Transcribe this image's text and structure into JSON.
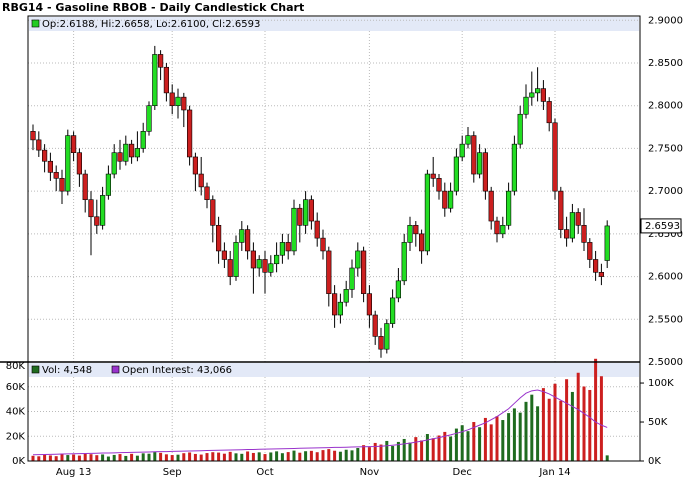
{
  "title": "RBG14 - Gasoline RBOB - Daily Candlestick Chart",
  "chart_data": [
    {
      "type": "candlestick",
      "legend": "Op:2.6188, Hi:2.6658, Lo:2.6100, Cl:2.6593",
      "legend_color": "#22cc22",
      "up_color": "#22dd22",
      "down_color": "#cc1f1f",
      "grid": true,
      "ylim": [
        2.5,
        2.905
      ],
      "yticks": [
        {
          "value": 2.5,
          "label": "2.5000"
        },
        {
          "value": 2.55,
          "label": "2.5500"
        },
        {
          "value": 2.6,
          "label": "2.6000"
        },
        {
          "value": 2.65,
          "label": "2.6500"
        },
        {
          "value": 2.7,
          "label": "2.7000"
        },
        {
          "value": 2.75,
          "label": "2.7500"
        },
        {
          "value": 2.8,
          "label": "2.8000"
        },
        {
          "value": 2.85,
          "label": "2.8500"
        },
        {
          "value": 2.9,
          "label": "2.9000"
        }
      ],
      "categories": [
        null,
        null,
        null,
        null,
        null,
        null,
        null,
        "Aug 13",
        null,
        null,
        null,
        null,
        null,
        null,
        null,
        null,
        null,
        null,
        null,
        null,
        null,
        null,
        null,
        null,
        "Sep",
        null,
        null,
        null,
        null,
        null,
        null,
        null,
        null,
        null,
        null,
        null,
        null,
        null,
        null,
        null,
        "Oct",
        null,
        null,
        null,
        null,
        null,
        null,
        null,
        null,
        null,
        null,
        null,
        null,
        null,
        null,
        null,
        null,
        null,
        "Nov",
        null,
        null,
        null,
        null,
        null,
        null,
        null,
        null,
        null,
        null,
        null,
        null,
        null,
        null,
        null,
        "Dec",
        null,
        null,
        null,
        null,
        null,
        null,
        null,
        null,
        null,
        null,
        null,
        null,
        null,
        null,
        null,
        "Jan 14",
        null,
        null,
        null,
        null,
        null,
        null,
        null,
        null,
        null
      ],
      "open": [
        2.77,
        2.76,
        2.748,
        2.735,
        2.722,
        2.715,
        2.7,
        2.765,
        2.745,
        2.72,
        2.69,
        2.67,
        2.66,
        2.695,
        2.72,
        2.745,
        2.735,
        2.755,
        2.74,
        2.75,
        2.77,
        2.8,
        2.86,
        2.845,
        2.815,
        2.8,
        2.81,
        2.795,
        2.74,
        2.72,
        2.705,
        2.69,
        2.66,
        2.63,
        2.62,
        2.6,
        2.64,
        2.655,
        2.63,
        2.61,
        2.62,
        2.605,
        2.615,
        2.625,
        2.64,
        2.63,
        2.68,
        2.66,
        2.69,
        2.665,
        2.645,
        2.63,
        2.58,
        2.555,
        2.57,
        2.585,
        2.61,
        2.63,
        2.58,
        2.555,
        2.53,
        2.515,
        2.545,
        2.575,
        2.595,
        2.64,
        2.66,
        2.65,
        2.63,
        2.72,
        2.715,
        2.7,
        2.68,
        2.7,
        2.74,
        2.755,
        2.765,
        2.72,
        2.745,
        2.7,
        2.665,
        2.65,
        2.66,
        2.7,
        2.755,
        2.79,
        2.81,
        2.815,
        2.82,
        2.805,
        2.78,
        2.7,
        2.655,
        2.645,
        2.675,
        2.66,
        2.64,
        2.62,
        2.605,
        2.6188
      ],
      "high": [
        2.778,
        2.77,
        2.755,
        2.745,
        2.73,
        2.725,
        2.772,
        2.77,
        2.75,
        2.725,
        2.7,
        2.69,
        2.705,
        2.73,
        2.755,
        2.76,
        2.765,
        2.76,
        2.77,
        2.78,
        2.805,
        2.87,
        2.865,
        2.85,
        2.825,
        2.82,
        2.815,
        2.8,
        2.745,
        2.74,
        2.71,
        2.695,
        2.67,
        2.64,
        2.63,
        2.648,
        2.665,
        2.66,
        2.64,
        2.625,
        2.63,
        2.625,
        2.64,
        2.65,
        2.65,
        2.69,
        2.685,
        2.7,
        2.695,
        2.675,
        2.655,
        2.635,
        2.59,
        2.58,
        2.595,
        2.62,
        2.64,
        2.635,
        2.59,
        2.56,
        2.54,
        2.55,
        2.585,
        2.61,
        2.65,
        2.67,
        2.665,
        2.655,
        2.725,
        2.74,
        2.72,
        2.71,
        2.71,
        2.75,
        2.765,
        2.775,
        2.77,
        2.755,
        2.75,
        2.705,
        2.67,
        2.67,
        2.71,
        2.765,
        2.8,
        2.825,
        2.84,
        2.845,
        2.83,
        2.81,
        2.785,
        2.705,
        2.67,
        2.685,
        2.68,
        2.68,
        2.645,
        2.63,
        2.615,
        2.6658
      ],
      "low": [
        2.748,
        2.74,
        2.722,
        2.712,
        2.7,
        2.685,
        2.695,
        2.735,
        2.705,
        2.675,
        2.625,
        2.65,
        2.655,
        2.69,
        2.715,
        2.725,
        2.73,
        2.732,
        2.735,
        2.745,
        2.765,
        2.795,
        2.83,
        2.805,
        2.79,
        2.785,
        2.775,
        2.73,
        2.7,
        2.695,
        2.68,
        2.64,
        2.615,
        2.61,
        2.59,
        2.595,
        2.63,
        2.62,
        2.58,
        2.6,
        2.58,
        2.6,
        2.605,
        2.615,
        2.62,
        2.625,
        2.64,
        2.65,
        2.655,
        2.635,
        2.62,
        2.565,
        2.54,
        2.545,
        2.565,
        2.575,
        2.6,
        2.57,
        2.54,
        2.52,
        2.505,
        2.51,
        2.54,
        2.57,
        2.59,
        2.63,
        2.635,
        2.615,
        2.625,
        2.705,
        2.69,
        2.67,
        2.675,
        2.695,
        2.735,
        2.75,
        2.71,
        2.715,
        2.69,
        2.655,
        2.64,
        2.645,
        2.655,
        2.695,
        2.75,
        2.785,
        2.8,
        2.805,
        2.795,
        2.77,
        2.69,
        2.645,
        2.635,
        2.64,
        2.65,
        2.63,
        2.61,
        2.595,
        2.59,
        2.61
      ],
      "close": [
        2.76,
        2.748,
        2.735,
        2.722,
        2.715,
        2.7,
        2.765,
        2.745,
        2.72,
        2.69,
        2.67,
        2.66,
        2.695,
        2.72,
        2.745,
        2.735,
        2.755,
        2.74,
        2.75,
        2.77,
        2.8,
        2.86,
        2.845,
        2.815,
        2.8,
        2.81,
        2.795,
        2.74,
        2.72,
        2.705,
        2.69,
        2.66,
        2.63,
        2.62,
        2.6,
        2.64,
        2.655,
        2.63,
        2.61,
        2.62,
        2.605,
        2.615,
        2.625,
        2.64,
        2.63,
        2.68,
        2.66,
        2.69,
        2.665,
        2.645,
        2.63,
        2.58,
        2.555,
        2.57,
        2.585,
        2.61,
        2.63,
        2.58,
        2.555,
        2.53,
        2.515,
        2.545,
        2.575,
        2.595,
        2.64,
        2.66,
        2.65,
        2.63,
        2.72,
        2.715,
        2.7,
        2.68,
        2.7,
        2.74,
        2.755,
        2.765,
        2.72,
        2.745,
        2.7,
        2.665,
        2.65,
        2.66,
        2.7,
        2.755,
        2.79,
        2.81,
        2.815,
        2.82,
        2.805,
        2.78,
        2.7,
        2.655,
        2.645,
        2.675,
        2.66,
        2.64,
        2.62,
        2.605,
        2.6,
        2.6593
      ]
    },
    {
      "type": "bar",
      "grid": true,
      "ylim": [
        0,
        80000
      ],
      "yticks": [
        {
          "value": 0,
          "label": "0K"
        },
        {
          "value": 20000,
          "label": "20K"
        },
        {
          "value": 40000,
          "label": "40K"
        },
        {
          "value": 60000,
          "label": "60K"
        },
        {
          "value": 80000,
          "label": "80K"
        }
      ],
      "y2lim": [
        0,
        127000
      ],
      "y2ticks": [
        {
          "value": 0,
          "label": "0K"
        },
        {
          "value": 50000,
          "label": "50K"
        },
        {
          "value": 100000,
          "label": "100K"
        }
      ],
      "series": [
        {
          "name": "Vol: 4,548",
          "color": "#1f6b1f",
          "values": [
            4200,
            3800,
            5100,
            4500,
            3900,
            6000,
            4800,
            5200,
            4400,
            6100,
            5500,
            4700,
            5300,
            3600,
            4900,
            5600,
            4100,
            5800,
            4300,
            6200,
            5900,
            7200,
            6600,
            5400,
            4800,
            5100,
            6300,
            6900,
            5700,
            5200,
            6400,
            7100,
            6800,
            5900,
            7400,
            6200,
            5800,
            7700,
            6500,
            7000,
            5600,
            6900,
            7800,
            6300,
            7200,
            8400,
            6700,
            7900,
            8200,
            7100,
            8800,
            9600,
            8300,
            7500,
            9100,
            8600,
            10500,
            12800,
            11200,
            14600,
            13300,
            16200,
            12100,
            15400,
            17800,
            14900,
            19300,
            16600,
            21800,
            18400,
            20600,
            23500,
            19800,
            26200,
            28900,
            24100,
            31500,
            27300,
            34800,
            29600,
            36200,
            33100,
            38700,
            42500,
            39100,
            47800,
            53600,
            44200,
            58900,
            50300,
            62400,
            48700,
            66100,
            55800,
            71300,
            60200,
            57400,
            82600,
            68500,
            4548
          ]
        },
        {
          "name": "Open Interest: 43,066",
          "color": "#9933cc",
          "axis": "y2",
          "values": [
            8000,
            8200,
            8400,
            8500,
            8700,
            8900,
            9100,
            9300,
            9400,
            9600,
            9800,
            10000,
            10200,
            10300,
            10500,
            10700,
            10900,
            11100,
            11200,
            11400,
            11600,
            11800,
            12000,
            12100,
            12300,
            12500,
            12700,
            12900,
            13000,
            13200,
            13400,
            13600,
            13800,
            13900,
            14100,
            14300,
            14500,
            14700,
            14800,
            15000,
            15200,
            15400,
            15600,
            15700,
            15900,
            16100,
            16300,
            16500,
            16600,
            16800,
            17000,
            17200,
            17400,
            17500,
            17700,
            17900,
            18100,
            18300,
            18400,
            18600,
            19000,
            19500,
            20200,
            21000,
            22000,
            23000,
            24200,
            25500,
            27000,
            28500,
            30000,
            31800,
            33500,
            35500,
            37500,
            40000,
            43000,
            46000,
            49000,
            53000,
            57000,
            62000,
            67000,
            74000,
            81000,
            87000,
            90000,
            91000,
            89000,
            86000,
            82000,
            78000,
            74000,
            70000,
            66000,
            61000,
            56000,
            50000,
            46000,
            43066
          ]
        }
      ]
    }
  ]
}
